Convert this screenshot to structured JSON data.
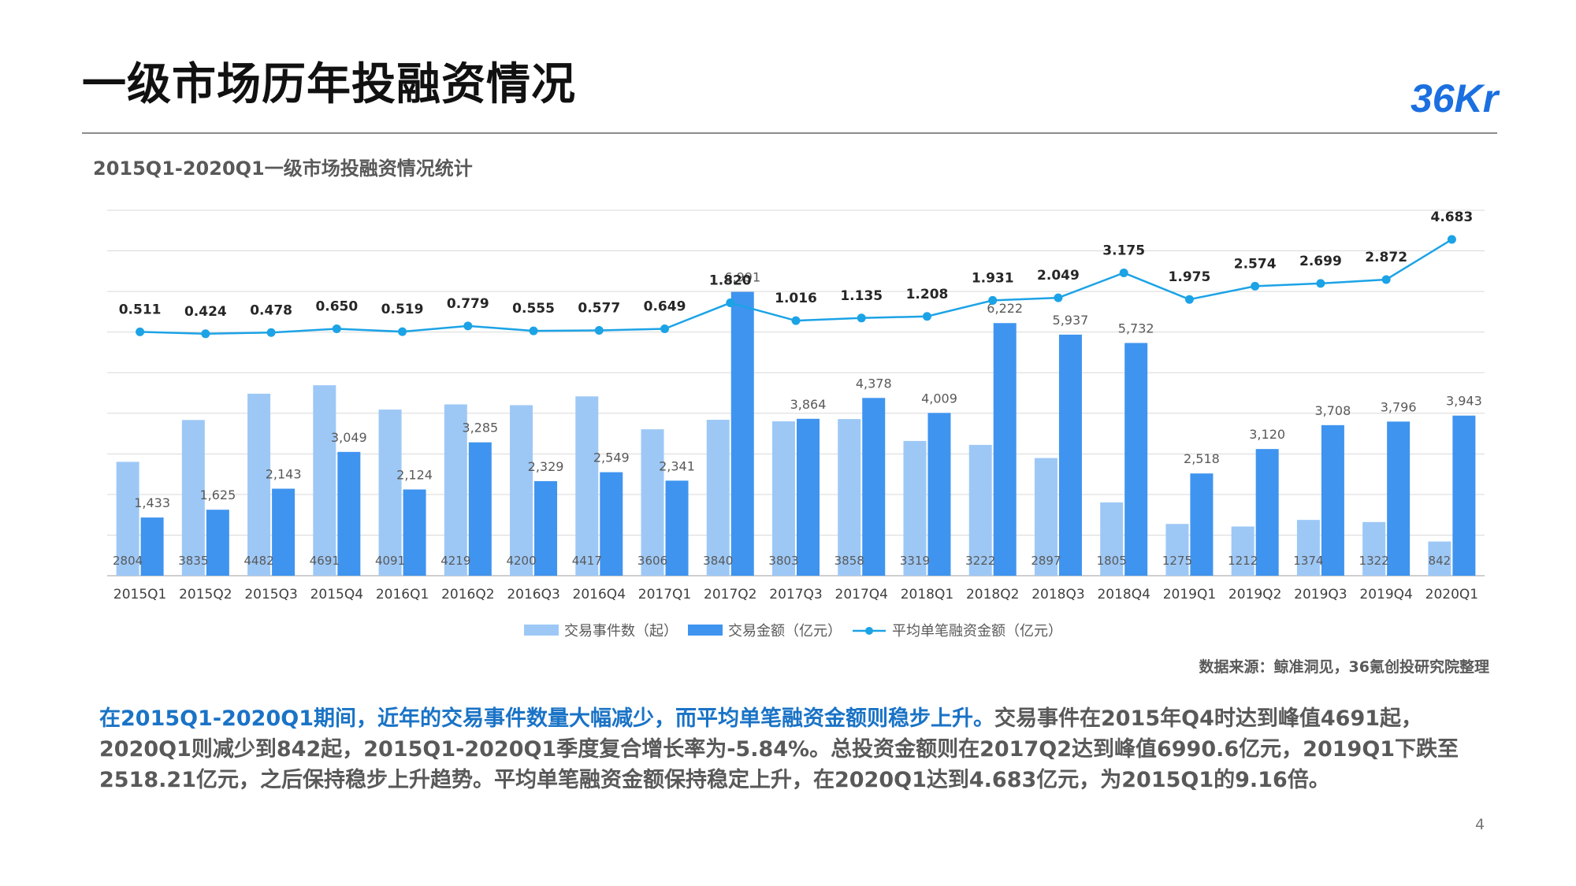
{
  "header": {
    "title": "一级市场历年投融资情况",
    "logo_text": "36Kr"
  },
  "chart_title": "2015Q1-2020Q1一级市场投融资情况统计",
  "chart_data": {
    "type": "bar",
    "categories": [
      "2015Q1",
      "2015Q2",
      "2015Q3",
      "2015Q4",
      "2016Q1",
      "2016Q2",
      "2016Q3",
      "2016Q4",
      "2017Q1",
      "2017Q2",
      "2017Q3",
      "2017Q4",
      "2018Q1",
      "2018Q2",
      "2018Q3",
      "2018Q4",
      "2019Q1",
      "2019Q2",
      "2019Q3",
      "2019Q4",
      "2020Q1"
    ],
    "series": [
      {
        "name": "交易事件数（起）",
        "type": "bar",
        "color": "#9dc8f6",
        "values": [
          2804,
          3835,
          4482,
          4691,
          4091,
          4219,
          4200,
          4417,
          3606,
          3840,
          3803,
          3858,
          3319,
          3222,
          2897,
          1805,
          1275,
          1212,
          1374,
          1322,
          842
        ],
        "labels": [
          "2804",
          "3835",
          "4482",
          "4691",
          "4091",
          "4219",
          "4200",
          "4417",
          "3606",
          "3840",
          "3803",
          "3858",
          "3319",
          "3222",
          "2897",
          "1805",
          "1275",
          "1212",
          "1374",
          "1322",
          "842"
        ]
      },
      {
        "name": "交易金额（亿元）",
        "type": "bar",
        "color": "#3f94ef",
        "values": [
          1433,
          1625,
          2143,
          3049,
          2124,
          3285,
          2329,
          2549,
          2341,
          6991,
          3864,
          4378,
          4009,
          6222,
          5937,
          5732,
          2518,
          3120,
          3708,
          3796,
          3943
        ],
        "labels": [
          "1,433",
          "1,625",
          "2,143",
          "3,049",
          "2,124",
          "3,285",
          "2,329",
          "2,549",
          "2,341",
          "6,991",
          "3,864",
          "4,378",
          "4,009",
          "6,222",
          "5,937",
          "5,732",
          "2,518",
          "3,120",
          "3,708",
          "3,796",
          "3,943"
        ]
      },
      {
        "name": "平均单笔融资金额（亿元）",
        "type": "line",
        "color": "#1ca3e6",
        "values": [
          0.511,
          0.424,
          0.478,
          0.65,
          0.519,
          0.779,
          0.555,
          0.577,
          0.649,
          1.82,
          1.016,
          1.135,
          1.208,
          1.931,
          2.049,
          3.175,
          1.975,
          2.574,
          2.699,
          2.872,
          4.683
        ],
        "labels": [
          "0.511",
          "0.424",
          "0.478",
          "0.650",
          "0.519",
          "0.779",
          "0.555",
          "0.577",
          "0.649",
          "1.820",
          "1.016",
          "1.135",
          "1.208",
          "1.931",
          "2.049",
          "3.175",
          "1.975",
          "2.574",
          "2.699",
          "2.872",
          "4.683"
        ]
      }
    ],
    "bar_axis_max": 9000,
    "line_axis_range": [
      -10.5,
      6.0
    ],
    "grid": true,
    "legend_position": "bottom"
  },
  "source_text": "数据来源：鲸准洞见，36氪创投研究院整理",
  "summary": {
    "highlight": "在2015Q1-2020Q1期间，近年的交易事件数量大幅减少，而平均单笔融资金额则稳步上升。",
    "body": "交易事件在2015年Q4时达到峰值4691起，2020Q1则减少到842起，2015Q1-2020Q1季度复合增长率为-5.84%。总投资金额则在2017Q2达到峰值6990.6亿元，2019Q1下跌至2518.21亿元，之后保持稳步上升趋势。平均单笔融资金额保持稳定上升，在2020Q1达到4.683亿元，为2015Q1的9.16倍。"
  },
  "page_number": "4"
}
